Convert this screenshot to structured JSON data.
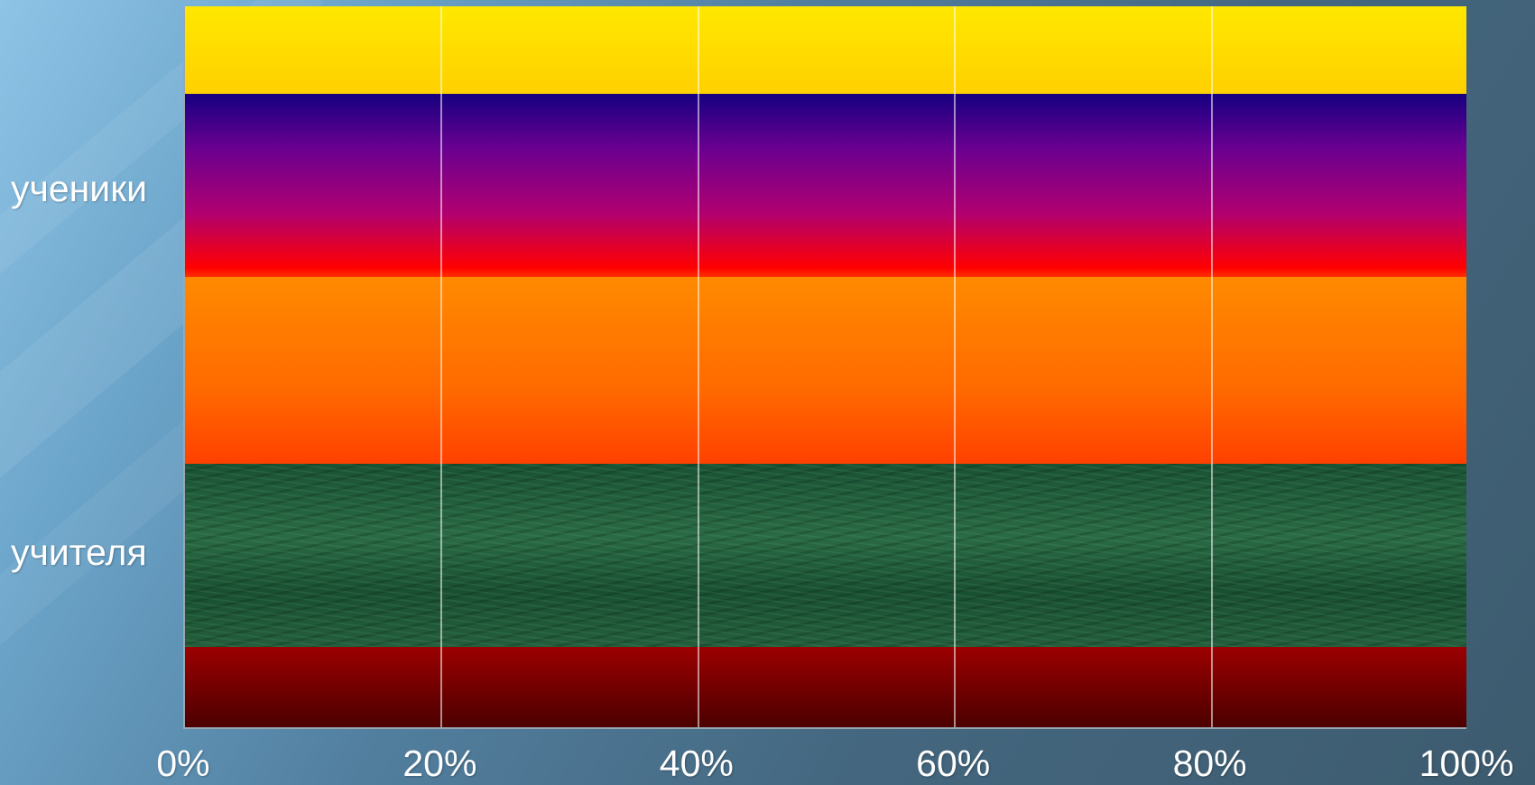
{
  "chart_data": {
    "type": "bar",
    "orientation": "horizontal",
    "stacked": "percent",
    "categories": [
      "ученики",
      "учителя"
    ],
    "series": [
      {
        "values": [
          100,
          100
        ],
        "color": "#ffd400"
      },
      {
        "values": [
          100,
          100
        ],
        "color": "#c0006a"
      },
      {
        "values": [
          100,
          100
        ],
        "color": "#ff6a00"
      },
      {
        "values": [
          100,
          100
        ],
        "color": "#1f5a38"
      },
      {
        "values": [
          100,
          100
        ],
        "color": "#8a0000"
      }
    ],
    "x_ticks": [
      "0%",
      "20%",
      "40%",
      "60%",
      "80%",
      "100%"
    ],
    "xlim": [
      0,
      100
    ],
    "grid": true,
    "title": "",
    "xlabel": "",
    "ylabel": ""
  }
}
